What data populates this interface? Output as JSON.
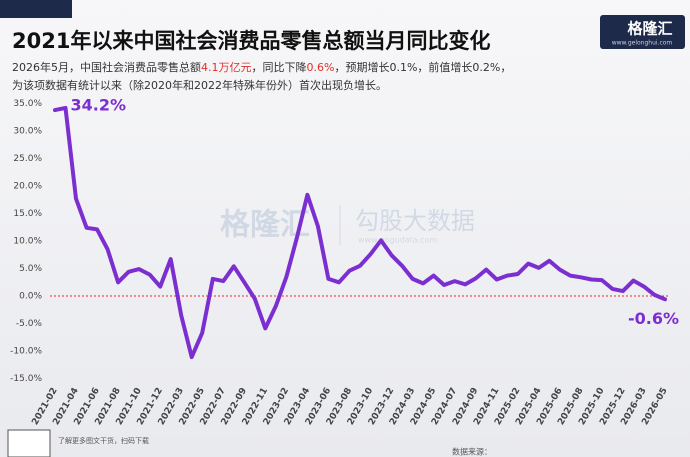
{
  "chart_data": {
    "type": "line",
    "title": "2021年以来中国社会消费品零售总额当月同比变化",
    "subtitle": {
      "line1": [
        "2026年5月，中国社会消费品零售总额",
        "4.1万亿元",
        "，同比下降",
        "0.6%",
        "，预期增长0.1%，前值增长0.2%，"
      ],
      "line2": "为该项数据有统计以来（除2020年和2022年特殊年份外）首次出现负增长。"
    },
    "logo": {
      "name": "格隆汇",
      "url": "www.gelonghui.com"
    },
    "watermark": {
      "brand": "格隆汇",
      "product": "勾股大数据",
      "url": "www.gogudata.com"
    },
    "footer": {
      "qr_note": "了解更多图文干货，扫码下载",
      "source": "数据来源："
    },
    "categories": [
      "2021-02",
      null,
      "2021-04",
      null,
      "2021-06",
      null,
      "2021-08",
      null,
      "2021-10",
      null,
      "2021-12",
      null,
      "2022-03",
      null,
      "2022-05",
      null,
      "2022-07",
      null,
      "2022-09",
      null,
      "2022-11",
      null,
      "2023-02",
      null,
      "2023-04",
      null,
      "2023-06",
      null,
      "2023-08",
      null,
      "2023-10",
      null,
      "2023-12",
      null,
      "2024-03",
      null,
      "2024-05",
      null,
      "2024-07",
      null,
      "2024-09",
      null,
      "2024-11",
      null,
      "2025-02",
      null,
      "2025-04",
      null,
      "2025-06",
      null,
      "2025-08",
      null,
      "2025-10",
      null,
      "2025-12",
      null,
      "2026-03",
      null,
      "2026-05"
    ],
    "series": [
      {
        "color": "#7b2fd0",
        "values": [
          33.8,
          34.2,
          17.7,
          12.4,
          12.1,
          8.5,
          2.5,
          4.4,
          4.9,
          3.9,
          1.7,
          6.7,
          -3.5,
          -11.1,
          -6.7,
          3.1,
          2.7,
          5.4,
          2.5,
          -0.5,
          -5.9,
          -1.8,
          3.5,
          10.6,
          18.4,
          12.7,
          3.1,
          2.5,
          4.6,
          5.5,
          7.6,
          10.1,
          7.4,
          5.5,
          3.1,
          2.3,
          3.7,
          2.0,
          2.7,
          2.1,
          3.2,
          4.8,
          3.0,
          3.7,
          4.0,
          5.9,
          5.1,
          6.4,
          4.8,
          3.7,
          3.4,
          3.0,
          2.9,
          1.3,
          0.9,
          2.8,
          1.7,
          0.2,
          -0.6
        ],
        "value_labels": [
          null,
          "34.2%",
          null,
          null,
          null,
          null,
          null,
          null,
          null,
          null,
          null,
          null,
          null,
          null,
          null,
          null,
          null,
          null,
          null,
          null,
          null,
          null,
          null,
          null,
          null,
          null,
          null,
          null,
          null,
          null,
          null,
          null,
          null,
          null,
          null,
          null,
          null,
          null,
          null,
          null,
          null,
          null,
          null,
          null,
          null,
          null,
          null,
          null,
          null,
          null,
          null,
          null,
          null,
          null,
          null,
          null,
          null,
          null,
          "-0.6%"
        ]
      }
    ],
    "ylim": [
      -15,
      35
    ],
    "yticks": [
      {
        "value": -15,
        "label": "-15.0%"
      },
      {
        "value": -10,
        "label": "-10.0%"
      },
      {
        "value": -5,
        "label": "-5.0%"
      },
      {
        "value": 0,
        "label": "0.0%"
      },
      {
        "value": 5,
        "label": "5.0%"
      },
      {
        "value": 10,
        "label": "10.0%"
      },
      {
        "value": 15,
        "label": "15.0%"
      },
      {
        "value": 20,
        "label": "20.0%"
      },
      {
        "value": 25,
        "label": "25.0%"
      },
      {
        "value": 30,
        "label": "30.0%"
      },
      {
        "value": 35,
        "label": "35.0%"
      }
    ],
    "zero_line": true
  }
}
